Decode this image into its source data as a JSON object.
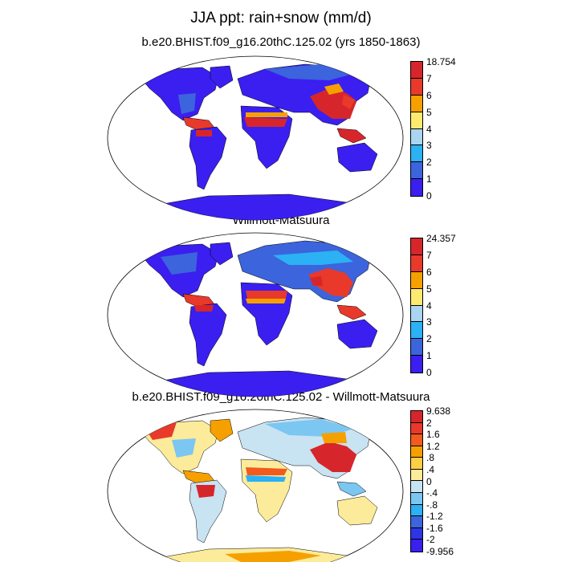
{
  "title": "JJA ppt: rain+snow (mm/d)",
  "panels": [
    {
      "title": "b.e20.BHIST.f09_g16.20thC.125.02 (yrs 1850-1863)",
      "legend": {
        "labels": [
          "18.754",
          "7",
          "6",
          "5",
          "4",
          "3",
          "2",
          "1",
          "0"
        ],
        "colors": [
          "#D7262B",
          "#E8392B",
          "#F6A000",
          "#FCEB6F",
          "#A9D5F0",
          "#2BB1F4",
          "#3C64DC",
          "#3A1FF0"
        ]
      }
    },
    {
      "title": "Willmott-Matsuura",
      "legend": {
        "labels": [
          "24.357",
          "7",
          "6",
          "5",
          "4",
          "3",
          "2",
          "1",
          "0"
        ],
        "colors": [
          "#D7262B",
          "#E8392B",
          "#F6A000",
          "#FCEB6F",
          "#A9D5F0",
          "#2BB1F4",
          "#3C64DC",
          "#3A1FF0"
        ]
      }
    },
    {
      "title": "b.e20.BHIST.f09_g16.20thC.125.02 - Willmott-Matsuura",
      "legend": {
        "labels": [
          "9.638",
          "2",
          "1.6",
          "1.2",
          ".8",
          ".4",
          "0",
          "-.4",
          "-.8",
          "-1.2",
          "-1.6",
          "-2",
          "-9.956"
        ],
        "colors": [
          "#D7262B",
          "#E8392B",
          "#F25A1E",
          "#F6A000",
          "#FCCF45",
          "#FCEB9A",
          "#C8E3F2",
          "#7CC6F2",
          "#2BB1F4",
          "#3C64DC",
          "#2E35E6",
          "#3A1FF0"
        ]
      }
    }
  ]
}
